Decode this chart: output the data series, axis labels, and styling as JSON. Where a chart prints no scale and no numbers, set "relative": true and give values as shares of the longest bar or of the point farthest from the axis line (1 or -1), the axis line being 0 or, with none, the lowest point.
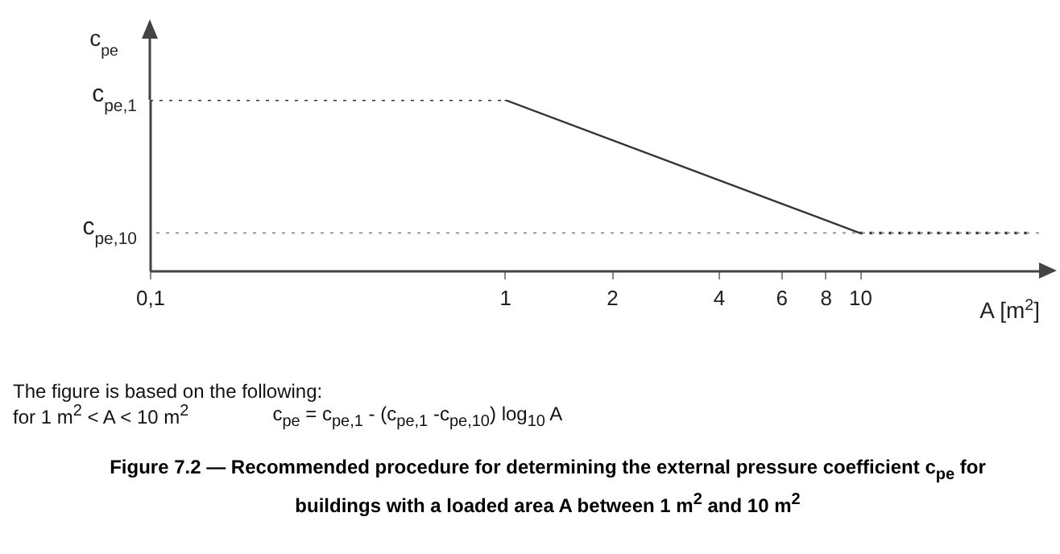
{
  "chart_data": {
    "type": "line",
    "title": "Figure 7.2 — Recommended procedure for determining the external pressure coefficient c$_{pe}$ for buildings with a loaded area A between 1 m$^{2}$ and 10 m$^{2}$",
    "xlabel": "A [m$^{2}$]",
    "ylabel": "c$_{pe}$",
    "log": "x",
    "xlim": [
      0.1,
      32
    ],
    "xticks": [
      {
        "value": 0.1,
        "label": "0,1"
      },
      1,
      2,
      4,
      6,
      8,
      10
    ],
    "relative": true,
    "series": [
      {
        "color": "#333333",
        "x": [
          0.1,
          1
        ],
        "values": [
          1,
          1
        ],
        "line_style": "dotted"
      },
      {
        "color": "#333333",
        "x": [
          1,
          10
        ],
        "values": [
          1,
          0.22
        ],
        "line_style": "solid"
      },
      {
        "color": "#333333",
        "x": [
          10,
          30
        ],
        "values": [
          0.22,
          0.22
        ],
        "line_style": "dotted"
      }
    ],
    "ref_lines": [
      {
        "axis": "y",
        "value": 0.22,
        "color": "#999999",
        "line_style": "dotted"
      }
    ],
    "grid": false,
    "annotations": [
      {
        "text": "c$_{pe,1}$",
        "x": 0.1,
        "y": 1
      },
      {
        "text": "c$_{pe,10}$",
        "x": 0.1,
        "y": 0.22
      },
      "The figure is based on the following:",
      "for 1 m$^{2}$ < A < 10 m$^{2}$",
      "c$_{pe}$ = c$_{pe,1}$ - (c$_{pe,1}$ -c$_{pe,10}$) log$_{10}$ A"
    ]
  }
}
